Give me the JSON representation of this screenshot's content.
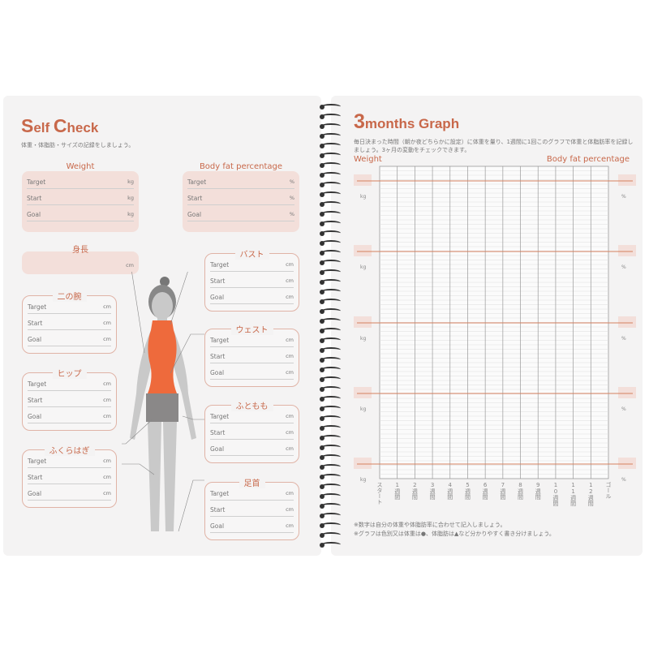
{
  "left": {
    "title_first": "S",
    "title_rest": "elf ",
    "title_first2": "C",
    "title_rest2": "heck",
    "subtitle": "体重・体脂肪・サイズの記録をしましょう。",
    "weight": {
      "title": "Weight",
      "unit": "kg"
    },
    "bodyfat": {
      "title": "Body fat percentage",
      "unit": "%"
    },
    "height": {
      "title": "身長",
      "unit": "cm"
    },
    "rows": [
      "Target",
      "Start",
      "Goal"
    ],
    "measures": [
      {
        "title": "二の腕",
        "unit": "cm"
      },
      {
        "title": "ヒップ",
        "unit": "cm"
      },
      {
        "title": "ふくらはぎ",
        "unit": "cm"
      },
      {
        "title": "バスト",
        "unit": "cm"
      },
      {
        "title": "ウェスト",
        "unit": "cm"
      },
      {
        "title": "ふともも",
        "unit": "cm"
      },
      {
        "title": "足首",
        "unit": "cm"
      }
    ]
  },
  "right": {
    "title_num": "3",
    "title_rest": "months Graph",
    "description": "毎日決まった時間（朝か夜どちらかに設定）に体重を量り、1週間に1回このグラフで体重と体脂肪率を記録しましょう。3ヶ月の変動をチェックできます。",
    "weight_label": "Weight",
    "bodyfat_label": "Body fat percentage",
    "kg": "kg",
    "pct": "%",
    "x_labels": [
      "スタート",
      "1週間",
      "2週間",
      "3週間",
      "4週間",
      "5週間",
      "6週間",
      "7週間",
      "8週間",
      "9週間",
      "10週間",
      "11週間",
      "12週間",
      "ゴール"
    ],
    "note1": "※数字は自分の体重や体脂肪率に合わせて記入しましょう。",
    "note2": "※グラフは色別又は体重は●、体脂肪は▲など分かりやすく書き分けましょう。"
  },
  "colors": {
    "accent": "#c8684a",
    "orange_top": "#ee6a3c",
    "shorts": "#8a8888",
    "skin": "#c9c9c9"
  }
}
